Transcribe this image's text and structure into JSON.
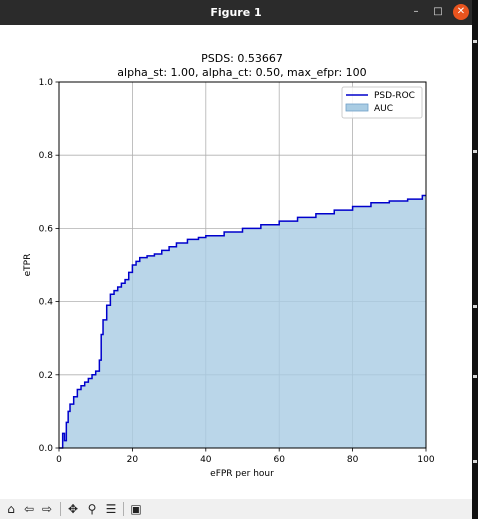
{
  "window": {
    "title": "Figure 1",
    "minimize_glyph": "–",
    "maximize_glyph": "□",
    "close_glyph": "✕"
  },
  "toolbar": {
    "items": [
      {
        "name": "home-icon",
        "glyph": "⌂"
      },
      {
        "name": "back-icon",
        "glyph": "⇦"
      },
      {
        "name": "forward-icon",
        "glyph": "⇨"
      },
      {
        "name": "pan-icon",
        "glyph": "✥"
      },
      {
        "name": "zoom-icon",
        "glyph": "⚲"
      },
      {
        "name": "configure-subplots-icon",
        "glyph": "☰"
      },
      {
        "name": "save-icon",
        "glyph": "▣"
      }
    ]
  },
  "colors": {
    "line": "#0000cc",
    "fill": "#a9cce3",
    "grid": "#b0b0b0",
    "titlebar": "#2b2b2b",
    "close": "#e9541e"
  },
  "chart_data": {
    "type": "area",
    "title": "PSDS: 0.53667",
    "subtitle": "alpha_st: 1.00, alpha_ct: 0.50, max_efpr: 100",
    "xlabel": "eFPR per hour",
    "ylabel": "eTPR",
    "xlim": [
      0,
      100
    ],
    "ylim": [
      0,
      1.0
    ],
    "xticks": [
      "0",
      "20",
      "40",
      "60",
      "80",
      "100"
    ],
    "yticks": [
      "0.0",
      "0.2",
      "0.4",
      "0.6",
      "0.8",
      "1.0"
    ],
    "grid": true,
    "legend_position": "top-right",
    "series": [
      {
        "name": "PSD-ROC",
        "legend_fill_label": "AUC",
        "x": [
          0,
          1,
          1,
          1.5,
          1.5,
          2,
          2,
          2.5,
          2.5,
          3,
          3,
          4,
          4,
          5,
          5,
          6,
          6,
          7,
          7,
          8,
          8,
          9,
          9,
          10,
          10,
          11,
          11,
          11.5,
          11.5,
          12,
          12,
          13,
          13,
          14,
          14,
          15,
          15,
          16,
          16,
          17,
          17,
          18,
          18,
          19,
          19,
          20,
          20,
          21,
          21,
          22,
          22,
          24,
          24,
          26,
          26,
          28,
          28,
          30,
          30,
          32,
          32,
          35,
          35,
          38,
          38,
          40,
          40,
          45,
          45,
          50,
          50,
          55,
          55,
          60,
          60,
          65,
          65,
          70,
          70,
          75,
          75,
          80,
          80,
          85,
          85,
          90,
          90,
          95,
          95,
          99,
          99,
          100
        ],
        "y": [
          0,
          0,
          0.04,
          0.04,
          0.02,
          0.02,
          0.07,
          0.07,
          0.1,
          0.1,
          0.12,
          0.12,
          0.14,
          0.14,
          0.16,
          0.16,
          0.17,
          0.17,
          0.18,
          0.18,
          0.19,
          0.19,
          0.2,
          0.2,
          0.21,
          0.21,
          0.24,
          0.24,
          0.31,
          0.31,
          0.35,
          0.35,
          0.39,
          0.39,
          0.42,
          0.42,
          0.43,
          0.43,
          0.44,
          0.44,
          0.45,
          0.45,
          0.46,
          0.46,
          0.48,
          0.48,
          0.5,
          0.5,
          0.51,
          0.51,
          0.52,
          0.52,
          0.525,
          0.525,
          0.53,
          0.53,
          0.54,
          0.54,
          0.55,
          0.55,
          0.56,
          0.56,
          0.57,
          0.57,
          0.575,
          0.575,
          0.58,
          0.58,
          0.59,
          0.59,
          0.6,
          0.6,
          0.61,
          0.61,
          0.62,
          0.62,
          0.63,
          0.63,
          0.64,
          0.64,
          0.65,
          0.65,
          0.66,
          0.66,
          0.67,
          0.67,
          0.675,
          0.675,
          0.68,
          0.68,
          0.69,
          0.69
        ]
      }
    ]
  }
}
